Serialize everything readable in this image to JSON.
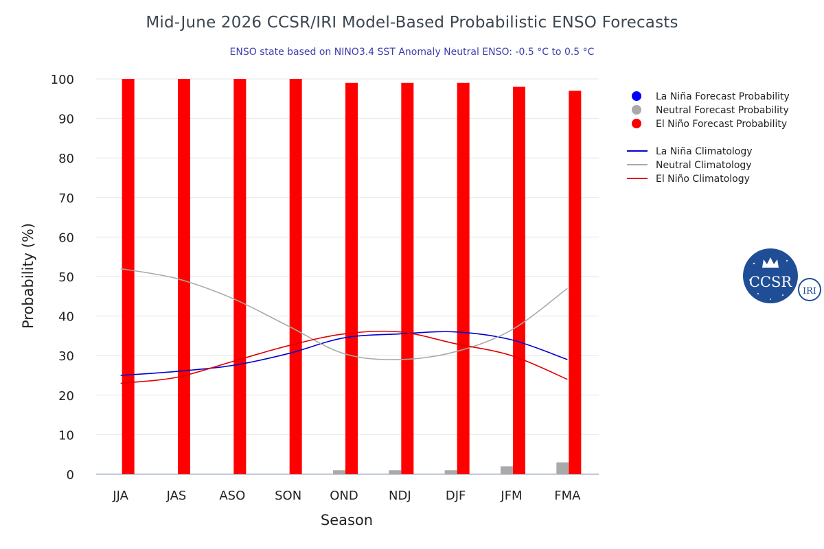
{
  "header": {
    "title": "Mid-June 2026 CCSR/IRI Model-Based Probabilistic ENSO Forecasts",
    "subtitle": "ENSO state based on NINO3.4 SST Anomaly Neutral ENSO: -0.5 °C to 0.5 °C"
  },
  "chart_data": {
    "type": "bar",
    "xlabel": "Season",
    "ylabel": "Probability (%)",
    "ylim": [
      0,
      100
    ],
    "yticks": [
      0,
      10,
      20,
      30,
      40,
      50,
      60,
      70,
      80,
      90,
      100
    ],
    "grid": true,
    "legend_position": "right",
    "categories": [
      "JJA",
      "JAS",
      "ASO",
      "SON",
      "OND",
      "NDJ",
      "DJF",
      "JFM",
      "FMA"
    ],
    "series": [
      {
        "name": "La Niña Forecast Probability",
        "kind": "bar",
        "color": "#0000ff",
        "values": [
          0,
          0,
          0,
          0,
          0,
          0,
          0,
          0,
          0
        ]
      },
      {
        "name": "Neutral Forecast Probability",
        "kind": "bar",
        "color": "#a9a9a9",
        "values": [
          0,
          0,
          0,
          0,
          1,
          1,
          1,
          2,
          3
        ]
      },
      {
        "name": "El Niño Forecast Probability",
        "kind": "bar",
        "color": "#ff0000",
        "values": [
          100,
          100,
          100,
          100,
          99,
          99,
          99,
          98,
          97
        ]
      },
      {
        "name": "La Niña Climatology",
        "kind": "line",
        "color": "#0000d0",
        "values": [
          25,
          26,
          27.5,
          30.5,
          34.5,
          35.5,
          36,
          34,
          29
        ]
      },
      {
        "name": "Neutral Climatology",
        "kind": "line",
        "color": "#a9a9a9",
        "values": [
          52,
          49.5,
          44.5,
          37.5,
          30.5,
          29,
          31,
          36.5,
          47
        ]
      },
      {
        "name": "El Niño Climatology",
        "kind": "line",
        "color": "#e00000",
        "values": [
          23,
          24.5,
          28.5,
          32.5,
          35.5,
          36,
          33,
          30,
          24
        ]
      }
    ]
  },
  "logo": {
    "main_text": "CCSR",
    "badge_text": "IRI",
    "main_color": "#1f4e96"
  }
}
